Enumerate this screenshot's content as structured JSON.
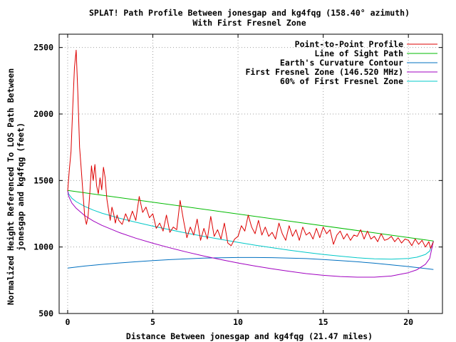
{
  "chart_data": {
    "type": "line",
    "title": "SPLAT! Path Profile Between jonesgap and kg4fqg (158.40° azimuth)",
    "subtitle": "With First Fresnel Zone",
    "xlabel": "Distance Between jonesgap and kg4fqg (21.47 miles)",
    "ylabel_line1": "Normalized Height Referenced To LOS Path Between",
    "ylabel_line2": "jonesgap and kg4fqg (feet)",
    "xlim": [
      -0.5,
      22.0
    ],
    "ylim": [
      500,
      2600
    ],
    "xticks": [
      0,
      5,
      10,
      15,
      20
    ],
    "yticks": [
      500,
      1000,
      1500,
      2000,
      2500
    ],
    "grid": true,
    "legend_position": "top-right",
    "series": [
      {
        "name": "Point-to-Point Profile",
        "color": "#dd0000",
        "x": [
          0,
          0.1,
          0.2,
          0.3,
          0.4,
          0.5,
          0.6,
          0.7,
          0.8,
          0.9,
          1.0,
          1.1,
          1.2,
          1.3,
          1.4,
          1.5,
          1.6,
          1.7,
          1.8,
          1.9,
          2.0,
          2.1,
          2.2,
          2.3,
          2.4,
          2.5,
          2.6,
          2.7,
          2.8,
          2.9,
          3.0,
          3.2,
          3.4,
          3.6,
          3.8,
          4.0,
          4.2,
          4.4,
          4.6,
          4.8,
          5.0,
          5.2,
          5.4,
          5.6,
          5.8,
          6.0,
          6.2,
          6.4,
          6.6,
          6.8,
          7.0,
          7.2,
          7.4,
          7.6,
          7.8,
          8.0,
          8.2,
          8.4,
          8.6,
          8.8,
          9.0,
          9.2,
          9.4,
          9.6,
          9.8,
          10.0,
          10.2,
          10.4,
          10.6,
          10.8,
          11.0,
          11.2,
          11.4,
          11.6,
          11.8,
          12.0,
          12.2,
          12.4,
          12.6,
          12.8,
          13.0,
          13.2,
          13.4,
          13.6,
          13.8,
          14.0,
          14.2,
          14.4,
          14.6,
          14.8,
          15.0,
          15.2,
          15.4,
          15.6,
          15.8,
          16.0,
          16.2,
          16.4,
          16.6,
          16.8,
          17.0,
          17.2,
          17.4,
          17.6,
          17.8,
          18.0,
          18.2,
          18.4,
          18.6,
          18.8,
          19.0,
          19.2,
          19.4,
          19.6,
          19.8,
          20.0,
          20.2,
          20.4,
          20.6,
          20.8,
          21.0,
          21.2,
          21.3,
          21.47
        ],
        "y": [
          1420,
          1580,
          1720,
          2050,
          2350,
          2480,
          2150,
          1750,
          1580,
          1400,
          1230,
          1170,
          1230,
          1400,
          1610,
          1500,
          1620,
          1460,
          1400,
          1520,
          1430,
          1600,
          1520,
          1360,
          1280,
          1200,
          1300,
          1250,
          1180,
          1240,
          1200,
          1170,
          1250,
          1190,
          1270,
          1200,
          1380,
          1260,
          1300,
          1220,
          1250,
          1140,
          1180,
          1120,
          1240,
          1110,
          1150,
          1130,
          1350,
          1200,
          1070,
          1150,
          1090,
          1210,
          1050,
          1140,
          1060,
          1230,
          1080,
          1130,
          1060,
          1180,
          1030,
          1010,
          1060,
          1080,
          1160,
          1120,
          1240,
          1150,
          1100,
          1200,
          1090,
          1150,
          1080,
          1110,
          1060,
          1180,
          1100,
          1050,
          1160,
          1080,
          1130,
          1050,
          1150,
          1090,
          1110,
          1060,
          1140,
          1070,
          1150,
          1100,
          1130,
          1020,
          1090,
          1120,
          1060,
          1100,
          1050,
          1090,
          1080,
          1130,
          1060,
          1120,
          1060,
          1080,
          1040,
          1100,
          1050,
          1060,
          1080,
          1040,
          1070,
          1030,
          1060,
          1050,
          1010,
          1060,
          1020,
          1050,
          1000,
          1040,
          990,
          1040
        ]
      },
      {
        "name": "Line of Sight Path",
        "color": "#00bb00",
        "x": [
          0,
          21.47
        ],
        "y": [
          1425,
          1045
        ]
      },
      {
        "name": "Earth's Curvature Contour",
        "color": "#0070c0",
        "x": [
          0,
          1,
          2,
          3,
          4,
          5,
          6,
          7,
          8,
          9,
          10,
          11,
          12,
          13,
          14,
          15,
          16,
          17,
          18,
          19,
          20,
          21,
          21.47
        ],
        "y": [
          842,
          857,
          869,
          880,
          889,
          898,
          905,
          911,
          916,
          919,
          921,
          921,
          920,
          917,
          913,
          906,
          898,
          889,
          878,
          866,
          853,
          838,
          831
        ]
      },
      {
        "name": "First Fresnel Zone (146.520 MHz)",
        "color": "#a000c0",
        "x": [
          0,
          0.05,
          0.25,
          0.5,
          1,
          1.5,
          2,
          3,
          4,
          5,
          6,
          7,
          8,
          9,
          10,
          11,
          12,
          13,
          14,
          15,
          16,
          17,
          18,
          19,
          20,
          20.5,
          21,
          21.25,
          21.47
        ],
        "y": [
          1425,
          1384,
          1330,
          1291,
          1236,
          1196,
          1163,
          1110,
          1066,
          1028,
          994,
          962,
          932,
          905,
          880,
          857,
          836,
          817,
          800,
          787,
          778,
          773,
          773,
          782,
          807,
          829,
          870,
          914,
          1045
        ]
      },
      {
        "name": "60% of First Fresnel Zone",
        "color": "#00c8c8",
        "x": [
          0,
          0.05,
          0.25,
          0.5,
          1,
          1.5,
          2,
          3,
          4,
          5,
          6,
          7,
          8,
          9,
          10,
          11,
          12,
          13,
          14,
          15,
          16,
          17,
          18,
          19,
          20,
          20.5,
          21,
          21.25,
          21.47
        ],
        "y": [
          1425,
          1400,
          1366,
          1341,
          1305,
          1278,
          1255,
          1218,
          1186,
          1157,
          1130,
          1104,
          1080,
          1057,
          1035,
          1014,
          995,
          976,
          959,
          944,
          931,
          919,
          911,
          908,
          914,
          923,
          944,
          970,
          1045
        ]
      }
    ]
  }
}
